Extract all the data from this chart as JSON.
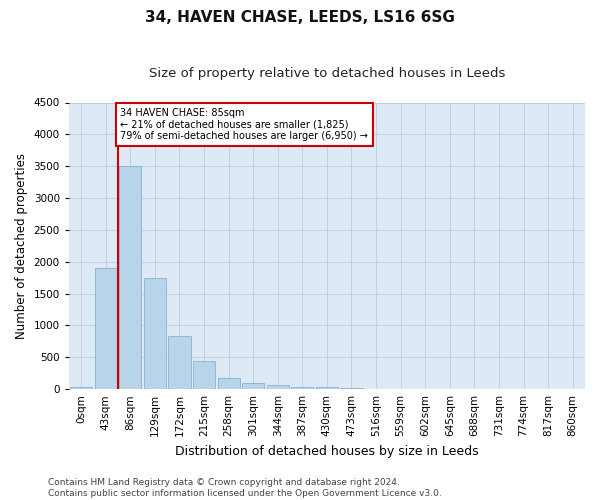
{
  "title1": "34, HAVEN CHASE, LEEDS, LS16 6SG",
  "title2": "Size of property relative to detached houses in Leeds",
  "xlabel": "Distribution of detached houses by size in Leeds",
  "ylabel": "Number of detached properties",
  "bar_labels": [
    "0sqm",
    "43sqm",
    "86sqm",
    "129sqm",
    "172sqm",
    "215sqm",
    "258sqm",
    "301sqm",
    "344sqm",
    "387sqm",
    "430sqm",
    "473sqm",
    "516sqm",
    "559sqm",
    "602sqm",
    "645sqm",
    "688sqm",
    "731sqm",
    "774sqm",
    "817sqm",
    "860sqm"
  ],
  "bar_values": [
    30,
    1900,
    3500,
    1750,
    840,
    450,
    170,
    100,
    60,
    40,
    30,
    20,
    0,
    0,
    0,
    0,
    0,
    0,
    0,
    0,
    0
  ],
  "bar_color": "#b8d4ea",
  "bar_edge_color": "#7aaac8",
  "vline_color": "#cc0000",
  "annotation_text": "34 HAVEN CHASE: 85sqm\n← 21% of detached houses are smaller (1,825)\n79% of semi-detached houses are larger (6,950) →",
  "annotation_box_color": "#cc0000",
  "ylim": [
    0,
    4500
  ],
  "yticks": [
    0,
    500,
    1000,
    1500,
    2000,
    2500,
    3000,
    3500,
    4000,
    4500
  ],
  "grid_color": "#c0d0e0",
  "bg_color": "#ddeaf5",
  "footer": "Contains HM Land Registry data © Crown copyright and database right 2024.\nContains public sector information licensed under the Open Government Licence v3.0.",
  "title1_fontsize": 11,
  "title2_fontsize": 9.5,
  "xlabel_fontsize": 9,
  "ylabel_fontsize": 8.5,
  "tick_fontsize": 7.5,
  "footer_fontsize": 6.5
}
